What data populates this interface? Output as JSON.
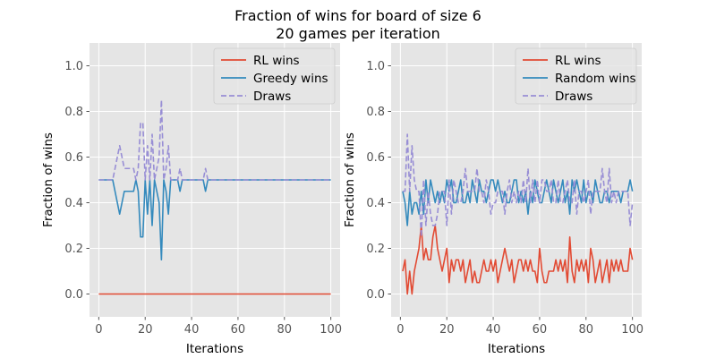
{
  "figure": {
    "title_line1": "Fraction of wins for board of size 6",
    "title_line2": "20 games per iteration"
  },
  "colors": {
    "rl": "#E24A33",
    "opponent": "#348ABD",
    "draws": "#988ED5",
    "plot_bg": "#E5E5E5",
    "grid": "#FFFFFF"
  },
  "chart_data": [
    {
      "type": "line",
      "xlabel": "Iterations",
      "ylabel": "Fraction of wins",
      "xlim": [
        -4,
        104
      ],
      "ylim": [
        -0.1,
        1.1
      ],
      "xticks": [
        "0",
        "20",
        "40",
        "60",
        "80",
        "100"
      ],
      "yticks": [
        "0.0",
        "0.2",
        "0.4",
        "0.6",
        "0.8",
        "1.0"
      ],
      "grid": true,
      "legend_position": "top-right",
      "x_start": 0,
      "series": [
        {
          "name": "RL wins",
          "style": "solid",
          "values": [
            0,
            0,
            0,
            0,
            0,
            0,
            0,
            0,
            0,
            0,
            0,
            0,
            0,
            0,
            0,
            0,
            0,
            0,
            0,
            0,
            0,
            0,
            0,
            0,
            0,
            0,
            0,
            0,
            0,
            0,
            0,
            0,
            0,
            0,
            0,
            0,
            0,
            0,
            0,
            0,
            0,
            0,
            0,
            0,
            0,
            0,
            0,
            0,
            0,
            0,
            0,
            0,
            0,
            0,
            0,
            0,
            0,
            0,
            0,
            0,
            0,
            0,
            0,
            0,
            0,
            0,
            0,
            0,
            0,
            0,
            0,
            0,
            0,
            0,
            0,
            0,
            0,
            0,
            0,
            0,
            0,
            0,
            0,
            0,
            0,
            0,
            0,
            0,
            0,
            0,
            0,
            0,
            0,
            0,
            0,
            0,
            0,
            0,
            0,
            0,
            0
          ]
        },
        {
          "name": "Greedy wins",
          "style": "solid",
          "values": [
            0.5,
            0.5,
            0.5,
            0.5,
            0.5,
            0.5,
            0.5,
            0.45,
            0.4,
            0.35,
            0.4,
            0.45,
            0.45,
            0.45,
            0.45,
            0.45,
            0.5,
            0.45,
            0.25,
            0.25,
            0.5,
            0.35,
            0.5,
            0.3,
            0.5,
            0.45,
            0.4,
            0.15,
            0.5,
            0.45,
            0.35,
            0.5,
            0.5,
            0.5,
            0.5,
            0.45,
            0.5,
            0.5,
            0.5,
            0.5,
            0.5,
            0.5,
            0.5,
            0.5,
            0.5,
            0.5,
            0.45,
            0.5,
            0.5,
            0.5,
            0.5,
            0.5,
            0.5,
            0.5,
            0.5,
            0.5,
            0.5,
            0.5,
            0.5,
            0.5,
            0.5,
            0.5,
            0.5,
            0.5,
            0.5,
            0.5,
            0.5,
            0.5,
            0.5,
            0.5,
            0.5,
            0.5,
            0.5,
            0.5,
            0.5,
            0.5,
            0.5,
            0.5,
            0.5,
            0.5,
            0.5,
            0.5,
            0.5,
            0.5,
            0.5,
            0.5,
            0.5,
            0.5,
            0.5,
            0.5,
            0.5,
            0.5,
            0.5,
            0.5,
            0.5,
            0.5,
            0.5,
            0.5,
            0.5,
            0.5,
            0.5
          ]
        },
        {
          "name": "Draws",
          "style": "dashed",
          "values": [
            0.5,
            0.5,
            0.5,
            0.5,
            0.5,
            0.5,
            0.5,
            0.55,
            0.6,
            0.65,
            0.6,
            0.55,
            0.55,
            0.55,
            0.55,
            0.55,
            0.5,
            0.55,
            0.75,
            0.75,
            0.5,
            0.65,
            0.5,
            0.7,
            0.5,
            0.55,
            0.6,
            0.85,
            0.5,
            0.55,
            0.65,
            0.5,
            0.5,
            0.5,
            0.5,
            0.55,
            0.5,
            0.5,
            0.5,
            0.5,
            0.5,
            0.5,
            0.5,
            0.5,
            0.5,
            0.5,
            0.55,
            0.5,
            0.5,
            0.5,
            0.5,
            0.5,
            0.5,
            0.5,
            0.5,
            0.5,
            0.5,
            0.5,
            0.5,
            0.5,
            0.5,
            0.5,
            0.5,
            0.5,
            0.5,
            0.5,
            0.5,
            0.5,
            0.5,
            0.5,
            0.5,
            0.5,
            0.5,
            0.5,
            0.5,
            0.5,
            0.5,
            0.5,
            0.5,
            0.5,
            0.5,
            0.5,
            0.5,
            0.5,
            0.5,
            0.5,
            0.5,
            0.5,
            0.5,
            0.5,
            0.5,
            0.5,
            0.5,
            0.5,
            0.5,
            0.5,
            0.5,
            0.5,
            0.5,
            0.5,
            0.5
          ]
        }
      ]
    },
    {
      "type": "line",
      "xlabel": "Iterations",
      "ylabel": "Fraction of wins",
      "xlim": [
        -4,
        104
      ],
      "ylim": [
        -0.1,
        1.1
      ],
      "xticks": [
        "0",
        "20",
        "40",
        "60",
        "80",
        "100"
      ],
      "yticks": [
        "0.0",
        "0.2",
        "0.4",
        "0.6",
        "0.8",
        "1.0"
      ],
      "grid": true,
      "legend_position": "top-right",
      "x_start": 1,
      "series": [
        {
          "name": "RL wins",
          "style": "solid",
          "values": [
            0.1,
            0.15,
            0,
            0.1,
            0,
            0.1,
            0.15,
            0.2,
            0.3,
            0.15,
            0.2,
            0.15,
            0.15,
            0.25,
            0.3,
            0.2,
            0.15,
            0.1,
            0.15,
            0.2,
            0.05,
            0.15,
            0.1,
            0.15,
            0.15,
            0.1,
            0.15,
            0.05,
            0.1,
            0.15,
            0.05,
            0.1,
            0.05,
            0.05,
            0.1,
            0.15,
            0.1,
            0.1,
            0.15,
            0.1,
            0.15,
            0.05,
            0.1,
            0.15,
            0.2,
            0.15,
            0.1,
            0.15,
            0.05,
            0.1,
            0.15,
            0.15,
            0.1,
            0.15,
            0.1,
            0.15,
            0.1,
            0.1,
            0.05,
            0.2,
            0.1,
            0.05,
            0.05,
            0.1,
            0.1,
            0.1,
            0.15,
            0.1,
            0.15,
            0.1,
            0.15,
            0.05,
            0.25,
            0.1,
            0.05,
            0.15,
            0.1,
            0.15,
            0.1,
            0.15,
            0.05,
            0.2,
            0.15,
            0.05,
            0.1,
            0.15,
            0.05,
            0.1,
            0.15,
            0.05,
            0.15,
            0.1,
            0.15,
            0.1,
            0.15,
            0.1,
            0.1,
            0.1,
            0.2,
            0.15
          ]
        },
        {
          "name": "Random wins",
          "style": "solid",
          "values": [
            0.45,
            0.4,
            0.3,
            0.45,
            0.35,
            0.4,
            0.4,
            0.35,
            0.45,
            0.35,
            0.5,
            0.4,
            0.5,
            0.45,
            0.4,
            0.45,
            0.4,
            0.45,
            0.4,
            0.5,
            0.45,
            0.5,
            0.4,
            0.4,
            0.45,
            0.5,
            0.4,
            0.4,
            0.45,
            0.4,
            0.5,
            0.45,
            0.4,
            0.5,
            0.45,
            0.45,
            0.4,
            0.45,
            0.5,
            0.5,
            0.45,
            0.5,
            0.45,
            0.4,
            0.45,
            0.4,
            0.4,
            0.45,
            0.5,
            0.5,
            0.4,
            0.45,
            0.4,
            0.45,
            0.35,
            0.45,
            0.4,
            0.5,
            0.45,
            0.4,
            0.4,
            0.45,
            0.5,
            0.45,
            0.4,
            0.5,
            0.45,
            0.4,
            0.45,
            0.5,
            0.4,
            0.45,
            0.35,
            0.5,
            0.45,
            0.5,
            0.45,
            0.4,
            0.5,
            0.4,
            0.45,
            0.45,
            0.4,
            0.5,
            0.45,
            0.4,
            0.4,
            0.45,
            0.45,
            0.4,
            0.45,
            0.45,
            0.45,
            0.45,
            0.4,
            0.45,
            0.45,
            0.45,
            0.5,
            0.45
          ]
        },
        {
          "name": "Draws",
          "style": "dashed",
          "values": [
            0.45,
            0.45,
            0.7,
            0.45,
            0.65,
            0.5,
            0.45,
            0.45,
            0.25,
            0.5,
            0.3,
            0.45,
            0.35,
            0.3,
            0.3,
            0.35,
            0.45,
            0.45,
            0.45,
            0.3,
            0.5,
            0.35,
            0.5,
            0.45,
            0.4,
            0.4,
            0.45,
            0.55,
            0.45,
            0.45,
            0.45,
            0.45,
            0.55,
            0.45,
            0.45,
            0.4,
            0.5,
            0.45,
            0.35,
            0.4,
            0.4,
            0.45,
            0.45,
            0.45,
            0.35,
            0.45,
            0.5,
            0.4,
            0.45,
            0.4,
            0.45,
            0.4,
            0.5,
            0.4,
            0.55,
            0.4,
            0.5,
            0.4,
            0.5,
            0.4,
            0.5,
            0.5,
            0.45,
            0.45,
            0.5,
            0.4,
            0.4,
            0.5,
            0.4,
            0.4,
            0.45,
            0.5,
            0.4,
            0.4,
            0.5,
            0.35,
            0.45,
            0.45,
            0.4,
            0.45,
            0.5,
            0.35,
            0.45,
            0.45,
            0.45,
            0.45,
            0.55,
            0.45,
            0.4,
            0.55,
            0.4,
            0.45,
            0.4,
            0.45,
            0.45,
            0.45,
            0.45,
            0.45,
            0.3,
            0.4
          ]
        }
      ]
    }
  ]
}
